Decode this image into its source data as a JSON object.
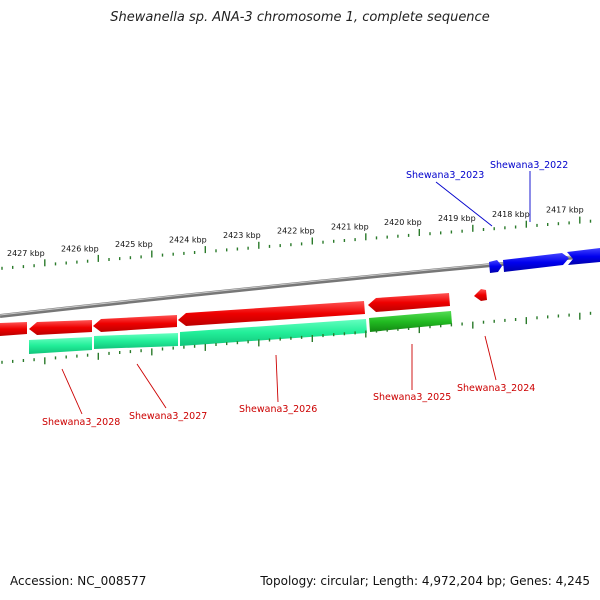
{
  "title": "Shewanella sp. ANA-3 chromosome 1, complete sequence",
  "footer": {
    "accession": "Accession: NC_008577",
    "summary": "Topology: circular; Length: 4,972,204 bp; Genes: 4,245"
  },
  "colors": {
    "red_gene": "#ee0000",
    "green_gene": "#22bb22",
    "teal_gene": "#22ee99",
    "blue_gene": "#0000ee",
    "tick": "#2a7a2a",
    "backbone": "#808080"
  },
  "ticks_top": [
    {
      "label": "2427 kbp"
    },
    {
      "label": "2426 kbp"
    },
    {
      "label": "2425 kbp"
    },
    {
      "label": "2424 kbp"
    },
    {
      "label": "2423 kbp"
    },
    {
      "label": "2422 kbp"
    },
    {
      "label": "2421 kbp"
    },
    {
      "label": "2420 kbp"
    },
    {
      "label": "2419 kbp"
    },
    {
      "label": "2418 kbp"
    },
    {
      "label": "2417 kbp"
    }
  ],
  "gene_labels": [
    {
      "id": "Shewana3_2022",
      "strand": "forward"
    },
    {
      "id": "Shewana3_2023",
      "strand": "forward"
    },
    {
      "id": "Shewana3_2024",
      "strand": "reverse"
    },
    {
      "id": "Shewana3_2025",
      "strand": "reverse"
    },
    {
      "id": "Shewana3_2026",
      "strand": "reverse"
    },
    {
      "id": "Shewana3_2027",
      "strand": "reverse"
    },
    {
      "id": "Shewana3_2028",
      "strand": "reverse"
    }
  ]
}
